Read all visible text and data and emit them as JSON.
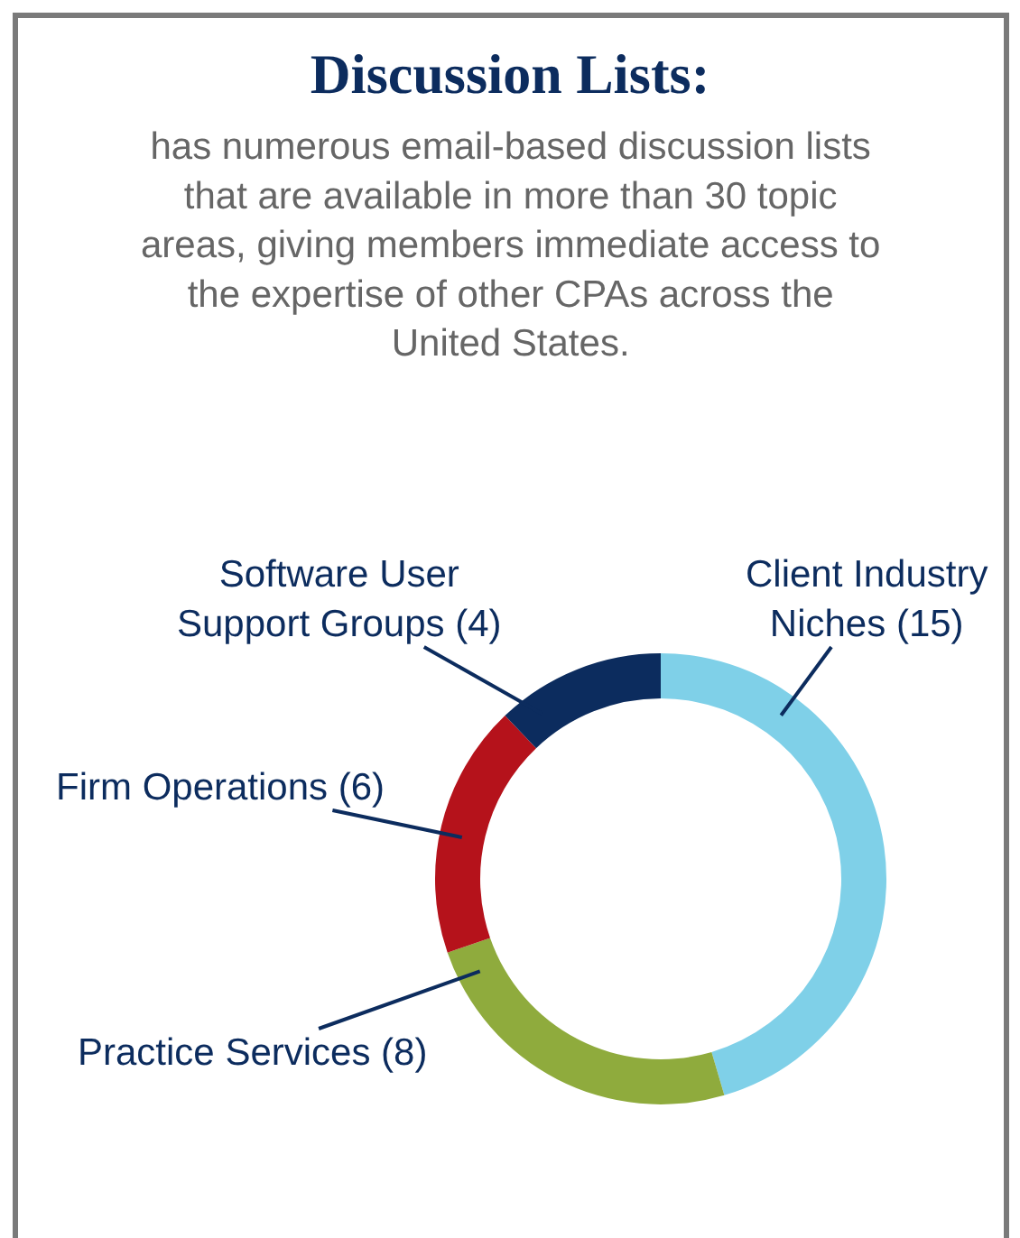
{
  "chart_data": {
    "type": "donut",
    "title": "Discussion Lists:",
    "subtitle": "has numerous email-based discussion lists that are available in more than 30 topic areas, giving members immediate access to the expertise of other CPAs across the United States.",
    "categories": [
      "Client Industry Niches",
      "Practice Services",
      "Firm Operations",
      "Software User Support Groups"
    ],
    "values": [
      15,
      8,
      6,
      4
    ],
    "colors": [
      "#7fd0e8",
      "#8fab3d",
      "#b5121b",
      "#0c2c5e"
    ],
    "value_labels": [
      "(15)",
      "(8)",
      "(6)",
      "(4)"
    ]
  }
}
